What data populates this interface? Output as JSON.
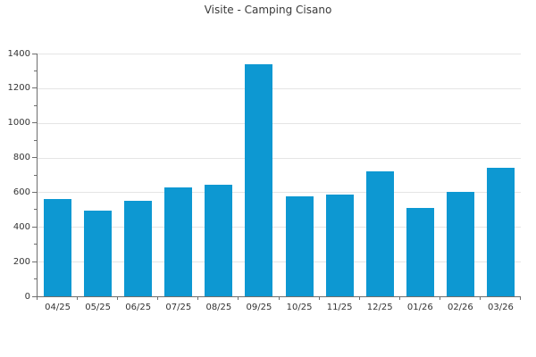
{
  "chart_data": {
    "type": "bar",
    "title": "Visite - Camping Cisano",
    "categories": [
      "04/25",
      "05/25",
      "06/25",
      "07/25",
      "08/25",
      "09/25",
      "10/25",
      "11/25",
      "12/25",
      "01/26",
      "02/26",
      "03/26"
    ],
    "values": [
      560,
      495,
      550,
      630,
      645,
      1340,
      575,
      585,
      720,
      510,
      600,
      740
    ],
    "xlabel": "",
    "ylabel": "",
    "ylim": [
      0,
      1400
    ],
    "ytick_step": 200,
    "ytick_minor_step": 100,
    "grid": "horizontal-major-only",
    "legend": "none",
    "bar_color": "#0d98d2",
    "grid_color": "#e5e5e5",
    "axis_color": "#6e6e6e",
    "label_color": "#333333",
    "title_color": "#3a3a3a",
    "background": "#ffffff"
  }
}
